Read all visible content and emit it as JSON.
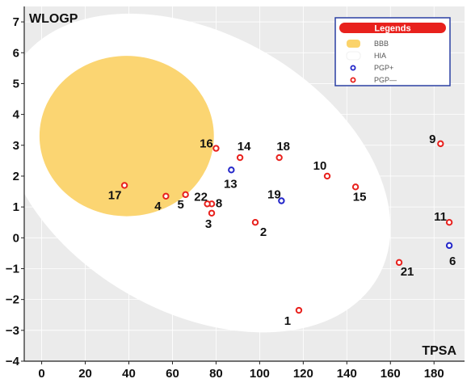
{
  "chart_data": {
    "type": "scatter",
    "title": "",
    "xlabel": "TPSA",
    "ylabel": "WLOGP",
    "xlim": [
      -8,
      194
    ],
    "ylim": [
      -4,
      7.5
    ],
    "x_ticks": [
      0,
      20,
      40,
      60,
      80,
      100,
      120,
      140,
      160,
      180
    ],
    "y_ticks": [
      -4,
      -3,
      -2,
      -1,
      0,
      1,
      2,
      3,
      4,
      5,
      6,
      7
    ],
    "y_tick_labels": [
      "−4",
      "−3",
      "−2",
      "−1",
      "0",
      "1",
      "2",
      "3",
      "4",
      "5",
      "6",
      "7"
    ],
    "grid": true,
    "background_color": "#ebebeb",
    "regions": [
      {
        "name": "BBB",
        "color": "#fbd36a",
        "shape": "ellipse",
        "cx": 39,
        "cy": 3.3,
        "rx": 40,
        "ry": 2.6
      },
      {
        "name": "HIA",
        "color": "#ffffff",
        "shape": "ellipse",
        "cx": 71,
        "cy": 2.1,
        "rx": 96,
        "ry": 4.5,
        "rotation_deg": 30
      }
    ],
    "legend": {
      "title": "Legends",
      "title_color": "#e8211d",
      "placement": "top-right",
      "items": [
        {
          "label": "BBB",
          "kind": "swatch",
          "color": "#fbd36a"
        },
        {
          "label": "HIA",
          "kind": "swatch",
          "color": "#ffffff"
        },
        {
          "label": "PGP+",
          "kind": "marker",
          "color": "#2326c9"
        },
        {
          "label": "PGP—",
          "kind": "marker",
          "color": "#e8211d"
        }
      ]
    },
    "series": [
      {
        "name": "PGP+",
        "color": "#2326c9",
        "points": [
          {
            "label": "6",
            "x": 187,
            "y": -0.25
          },
          {
            "label": "13",
            "x": 87,
            "y": 2.2
          },
          {
            "label": "19",
            "x": 110,
            "y": 1.2
          }
        ]
      },
      {
        "name": "PGP—",
        "color": "#e8211d",
        "points": [
          {
            "label": "1",
            "x": 118,
            "y": -2.35
          },
          {
            "label": "2",
            "x": 98,
            "y": 0.5
          },
          {
            "label": "3",
            "x": 78,
            "y": 0.8
          },
          {
            "label": "4",
            "x": 57,
            "y": 1.35
          },
          {
            "label": "5",
            "x": 66,
            "y": 1.4
          },
          {
            "label": "8",
            "x": 78,
            "y": 1.1
          },
          {
            "label": "22",
            "x": 76,
            "y": 1.1
          },
          {
            "label": "9",
            "x": 183,
            "y": 3.05
          },
          {
            "label": "10",
            "x": 131,
            "y": 2.0
          },
          {
            "label": "11",
            "x": 187,
            "y": 0.5
          },
          {
            "label": "14",
            "x": 91,
            "y": 2.6
          },
          {
            "label": "15",
            "x": 144,
            "y": 1.65
          },
          {
            "label": "16",
            "x": 80,
            "y": 2.9
          },
          {
            "label": "17",
            "x": 38,
            "y": 1.7
          },
          {
            "label": "18",
            "x": 109,
            "y": 2.6
          },
          {
            "label": "21",
            "x": 164,
            "y": -0.8
          }
        ]
      }
    ]
  }
}
